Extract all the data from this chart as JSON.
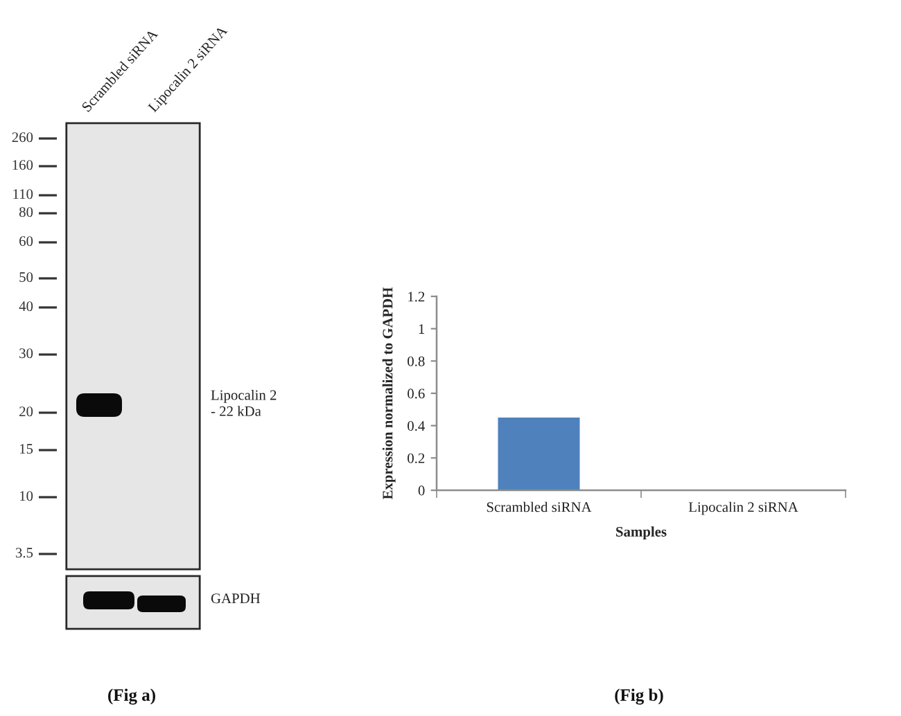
{
  "chart_data": [
    {
      "type": "other",
      "annotations": [
        "Scrambled siRNA",
        "Lipocalin 2 siRNA",
        "260",
        "160",
        "110",
        "80",
        "60",
        "50",
        "40",
        "30",
        "20",
        "15",
        "10",
        "3.5",
        "Lipocalin 2\n- 22 kDa",
        "GAPDH",
        "(Fig a)"
      ]
    },
    {
      "type": "bar",
      "categories": [
        "Scrambled siRNA",
        "Lipocalin 2 siRNA"
      ],
      "values": [
        0.45,
        0
      ],
      "color": "#4f81bd",
      "ylim": [
        0,
        1.2
      ],
      "yticks": [
        0,
        0.2,
        0.4,
        0.6,
        0.8,
        1,
        1.2
      ],
      "xlabel": "Samples",
      "ylabel": "Expression normalized to GAPDH",
      "annotations": [
        "(Fig b)"
      ]
    }
  ]
}
